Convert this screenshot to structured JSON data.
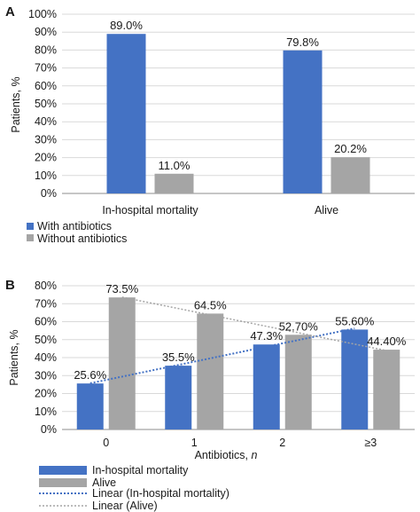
{
  "colors": {
    "blue": "#4472c4",
    "gray": "#a5a5a5",
    "grid": "#d9d9d9",
    "axis": "#8c8c8c"
  },
  "chart_data": [
    {
      "type": "bar",
      "panel": "A",
      "ylabel": "Patients, %",
      "ylim": [
        0,
        100
      ],
      "yticks": [
        "0%",
        "10%",
        "20%",
        "30%",
        "40%",
        "50%",
        "60%",
        "70%",
        "80%",
        "90%",
        "100%"
      ],
      "categories": [
        "In-hospital mortality",
        "Alive"
      ],
      "series": [
        {
          "name": "With antibiotics",
          "color": "#4472c4",
          "values": [
            89.0,
            79.8
          ],
          "labels": [
            "89.0%",
            "79.8%"
          ]
        },
        {
          "name": "Without antibiotics",
          "color": "#a5a5a5",
          "values": [
            11.0,
            20.2
          ],
          "labels": [
            "11.0%",
            "20.2%"
          ]
        }
      ],
      "legend_position": "bottom-left",
      "grid": true
    },
    {
      "type": "bar",
      "panel": "B",
      "ylabel": "Patients, %",
      "xlabel_main": "Antibiotics, ",
      "xlabel_var": "n",
      "ylim": [
        0,
        80
      ],
      "yticks": [
        "0%",
        "10%",
        "20%",
        "30%",
        "40%",
        "50%",
        "60%",
        "70%",
        "80%"
      ],
      "categories": [
        "0",
        "1",
        "2",
        "≥3"
      ],
      "series": [
        {
          "name": "In-hospital mortality",
          "color": "#4472c4",
          "values": [
            25.6,
            35.5,
            47.3,
            55.6
          ],
          "labels": [
            "25.6%",
            "35.5%",
            "47.3%",
            "55.60%"
          ]
        },
        {
          "name": "Alive",
          "color": "#a5a5a5",
          "values": [
            73.5,
            64.5,
            52.7,
            44.4
          ],
          "labels": [
            "73.5%",
            "64.5%",
            "52.70%",
            "44.40%"
          ]
        }
      ],
      "trendlines": [
        {
          "name": "Linear (In-hospital mortality)",
          "of_series": "In-hospital mortality",
          "color": "#4472c4",
          "style": "dotted"
        },
        {
          "name": "Linear (Alive)",
          "of_series": "Alive",
          "color": "#a5a5a5",
          "style": "dotted"
        }
      ],
      "legend_position": "bottom-left",
      "grid": true
    }
  ]
}
